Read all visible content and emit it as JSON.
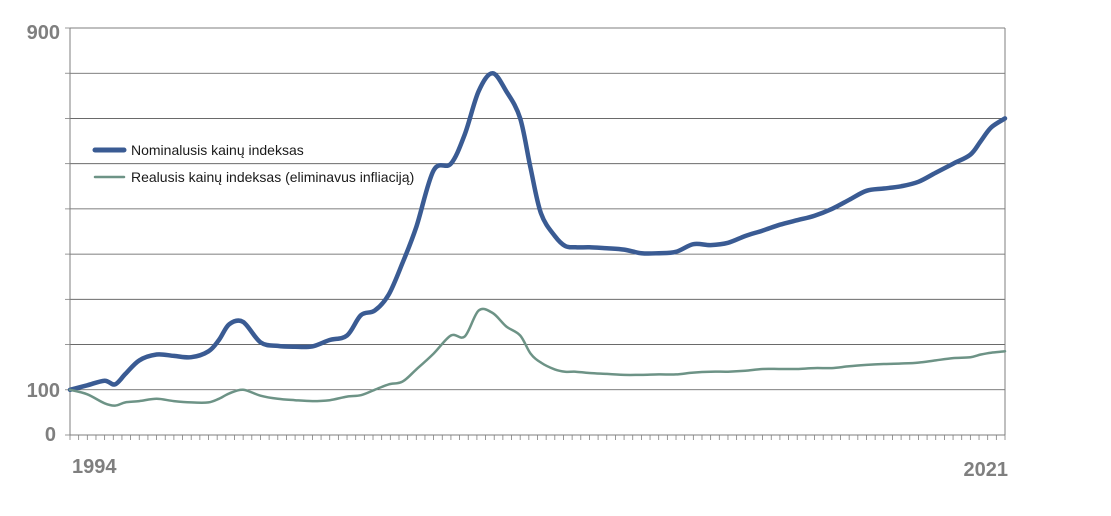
{
  "chart_data": {
    "type": "line",
    "title": "",
    "xlabel": "",
    "ylabel": "",
    "xlim": [
      1994,
      2021
    ],
    "ylim": [
      0,
      900
    ],
    "grid": true,
    "legend_position": "upper-left",
    "x_tick_labels": [
      "1994",
      "2021"
    ],
    "y_tick_labels": [
      {
        "value": 0,
        "label": "0"
      },
      {
        "value": 100,
        "label": "100"
      },
      {
        "value": 900,
        "label": "900"
      }
    ],
    "series": [
      {
        "name": "Nominalusis kainų indeksas",
        "color": "#3a5b93",
        "x": [
          1994.0,
          1994.5,
          1995.0,
          1995.3,
          1995.6,
          1996.0,
          1996.5,
          1997.0,
          1997.5,
          1998.0,
          1998.3,
          1998.6,
          1999.0,
          1999.5,
          2000.0,
          2000.5,
          2001.0,
          2001.5,
          2002.0,
          2002.4,
          2002.8,
          2003.2,
          2003.6,
          2004.0,
          2004.5,
          2005.0,
          2005.4,
          2005.8,
          2006.2,
          2006.6,
          2007.0,
          2007.3,
          2007.6,
          2008.0,
          2008.3,
          2008.6,
          2009.0,
          2009.5,
          2010.0,
          2010.5,
          2011.0,
          2011.5,
          2012.0,
          2012.5,
          2013.0,
          2013.5,
          2014.0,
          2014.5,
          2015.0,
          2015.5,
          2016.0,
          2016.5,
          2017.0,
          2017.5,
          2018.0,
          2018.5,
          2019.0,
          2019.5,
          2020.0,
          2020.3,
          2020.6,
          2021.0
        ],
        "values": [
          100,
          110,
          120,
          112,
          135,
          165,
          178,
          175,
          172,
          185,
          210,
          245,
          250,
          205,
          197,
          195,
          196,
          210,
          220,
          265,
          275,
          310,
          380,
          460,
          585,
          600,
          665,
          760,
          800,
          760,
          700,
          590,
          490,
          440,
          418,
          415,
          415,
          413,
          410,
          402,
          402,
          405,
          422,
          420,
          425,
          440,
          452,
          465,
          475,
          485,
          500,
          520,
          540,
          545,
          550,
          560,
          580,
          600,
          620,
          650,
          680,
          700
        ]
      },
      {
        "name": "Realusis kainų indeksas (eliminavus infliaciją)",
        "color": "#6d9386",
        "x": [
          1994.0,
          1994.5,
          1995.0,
          1995.3,
          1995.6,
          1996.0,
          1996.5,
          1997.0,
          1997.5,
          1998.0,
          1998.3,
          1998.6,
          1999.0,
          1999.5,
          2000.0,
          2000.5,
          2001.0,
          2001.5,
          2002.0,
          2002.4,
          2002.8,
          2003.2,
          2003.6,
          2004.0,
          2004.5,
          2005.0,
          2005.4,
          2005.8,
          2006.2,
          2006.6,
          2007.0,
          2007.3,
          2007.6,
          2008.0,
          2008.3,
          2008.6,
          2009.0,
          2009.5,
          2010.0,
          2010.5,
          2011.0,
          2011.5,
          2012.0,
          2012.5,
          2013.0,
          2013.5,
          2014.0,
          2014.5,
          2015.0,
          2015.5,
          2016.0,
          2016.5,
          2017.0,
          2017.5,
          2018.0,
          2018.5,
          2019.0,
          2019.5,
          2020.0,
          2020.3,
          2020.6,
          2021.0
        ],
        "values": [
          100,
          90,
          70,
          65,
          72,
          75,
          80,
          75,
          72,
          72,
          80,
          92,
          100,
          87,
          80,
          77,
          75,
          77,
          85,
          88,
          100,
          112,
          118,
          145,
          180,
          220,
          218,
          275,
          270,
          240,
          220,
          180,
          160,
          145,
          140,
          140,
          137,
          135,
          133,
          133,
          134,
          134,
          138,
          140,
          140,
          142,
          146,
          146,
          146,
          148,
          148,
          152,
          155,
          157,
          158,
          160,
          165,
          170,
          172,
          178,
          182,
          185
        ]
      }
    ]
  }
}
